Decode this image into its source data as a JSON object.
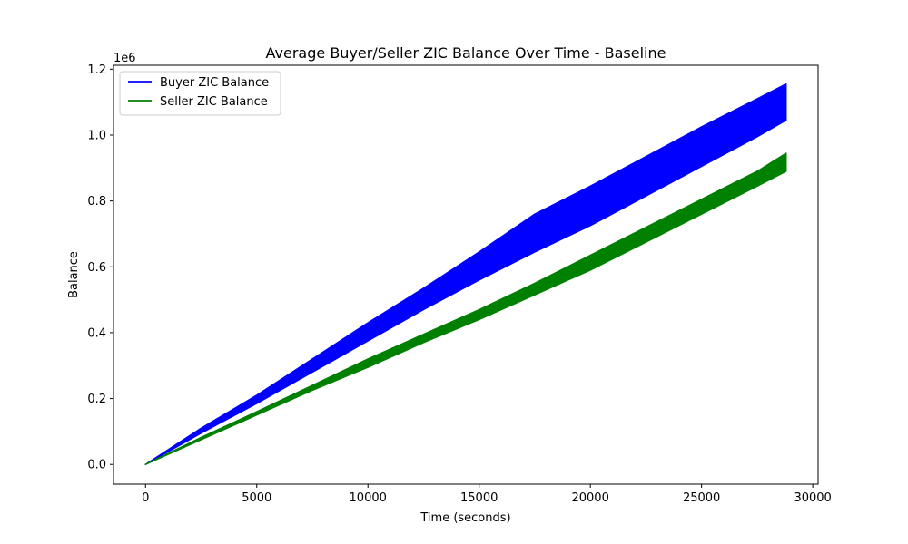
{
  "chart_data": {
    "type": "area",
    "title": "Average Buyer/Seller ZIC Balance Over Time - Baseline",
    "xlabel": "Time (seconds)",
    "ylabel": "Balance",
    "y_offset_text": "1e6",
    "xlim": [
      -1440,
      30240
    ],
    "ylim": [
      -60000,
      1212000
    ],
    "x_ticks": [
      0,
      5000,
      10000,
      15000,
      20000,
      25000,
      30000
    ],
    "x_tick_labels": [
      "0",
      "5000",
      "10000",
      "15000",
      "20000",
      "25000",
      "30000"
    ],
    "y_ticks": [
      0,
      200000,
      400000,
      600000,
      800000,
      1000000,
      1200000
    ],
    "y_tick_labels": [
      "0.0",
      "0.2",
      "0.4",
      "0.6",
      "0.8",
      "1.0",
      "1.2"
    ],
    "grid": false,
    "legend": "top-left",
    "x": [
      0,
      2500,
      5000,
      7500,
      10000,
      12500,
      15000,
      17500,
      20000,
      22500,
      25000,
      27500,
      28800
    ],
    "series": [
      {
        "name": "Buyer ZIC Balance",
        "color": "#0000ff",
        "lower": [
          0,
          95000,
          185000,
          280000,
          375000,
          470000,
          560000,
          645000,
          725000,
          815000,
          905000,
          995000,
          1045000
        ],
        "upper": [
          0,
          110000,
          210000,
          320000,
          430000,
          535000,
          645000,
          760000,
          845000,
          935000,
          1025000,
          1110000,
          1155000
        ]
      },
      {
        "name": "Seller ZIC Balance",
        "color": "#008000",
        "lower": [
          0,
          75000,
          150000,
          225000,
          295000,
          370000,
          440000,
          515000,
          590000,
          675000,
          760000,
          845000,
          890000
        ],
        "upper": [
          0,
          82000,
          160000,
          240000,
          320000,
          395000,
          470000,
          550000,
          635000,
          720000,
          805000,
          890000,
          945000
        ]
      }
    ]
  }
}
